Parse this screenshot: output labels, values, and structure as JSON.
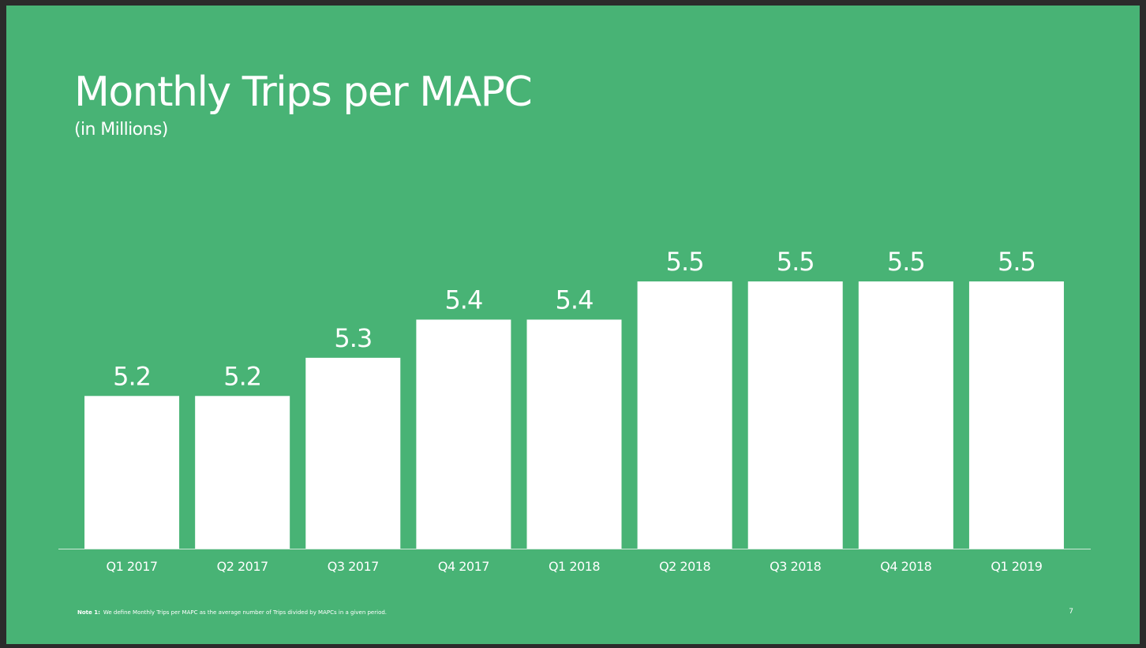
{
  "slide": {
    "title": "Monthly Trips per MAPC",
    "subtitle": "(in Millions)",
    "footnote": {
      "label": "Note 1:",
      "text": "We define Monthly Trips per MAPC as the average number of Trips divided by MAPCs in a given period."
    },
    "page_number": "7"
  },
  "colors": {
    "background": "#48b375",
    "bar": "#ffffff",
    "text": "#ffffff"
  },
  "chart_data": {
    "type": "bar",
    "title": "Monthly Trips per MAPC",
    "subtitle": "(in Millions)",
    "categories": [
      "Q1 2017",
      "Q2 2017",
      "Q3 2017",
      "Q4 2017",
      "Q1 2018",
      "Q2 2018",
      "Q3 2018",
      "Q4 2018",
      "Q1 2019"
    ],
    "values": [
      5.2,
      5.2,
      5.3,
      5.4,
      5.4,
      5.5,
      5.5,
      5.5,
      5.5
    ],
    "xlabel": "",
    "ylabel": "",
    "ylim": [
      4.8,
      5.5
    ],
    "grid": false,
    "legend": "none",
    "data_labels": true
  }
}
